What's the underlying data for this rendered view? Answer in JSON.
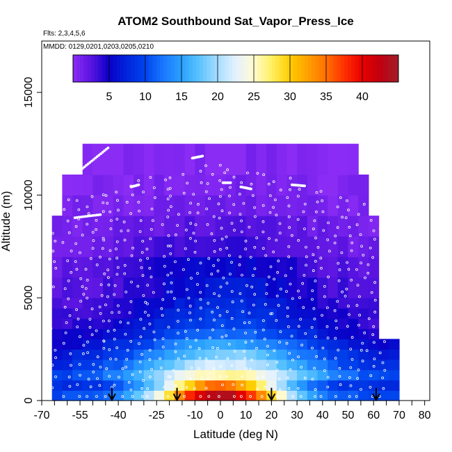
{
  "chart_data": {
    "type": "heatmap",
    "title": "ATOM2 Southbound Sat_Vapor_Press_Ice",
    "flights_label": "Flts: 2,3,4,5,6",
    "dates_label": "MMDD: 0129,0201,0203,0205,0210",
    "xlabel": "Latitude (deg N)",
    "ylabel": "Altitude (m)",
    "xlim": [
      -70,
      82
    ],
    "ylim": [
      0,
      17500
    ],
    "x_ticks": [
      -70,
      -55,
      -40,
      -25,
      -10,
      0,
      10,
      20,
      30,
      40,
      50,
      60,
      70,
      80
    ],
    "x_tick_labels": [
      "-70",
      "-55",
      "-40",
      "-25",
      "-10",
      "0",
      "10",
      "20",
      "30",
      "40",
      "50",
      "60",
      "70",
      "80"
    ],
    "x_minor_ticks": [
      -65,
      -60,
      -50,
      -45,
      -35,
      -30,
      -20,
      -15,
      -5,
      5,
      15,
      25,
      35,
      45,
      55,
      65,
      75
    ],
    "y_ticks": [
      0,
      5000,
      10000,
      15000
    ],
    "y_tick_labels": [
      "0",
      "5000",
      "10000",
      "15000"
    ],
    "colorbar": {
      "range": [
        0,
        45
      ],
      "ticks": [
        5,
        10,
        15,
        20,
        25,
        30,
        35,
        40
      ],
      "tick_labels": [
        "5",
        "10",
        "15",
        "20",
        "25",
        "30",
        "35",
        "40"
      ],
      "stops": [
        {
          "v": 0,
          "c": "#8b2cf5"
        },
        {
          "v": 2.5,
          "c": "#5a14e0"
        },
        {
          "v": 5,
          "c": "#0a00c8"
        },
        {
          "v": 7.5,
          "c": "#0026dc"
        },
        {
          "v": 10,
          "c": "#0044ee"
        },
        {
          "v": 12.5,
          "c": "#1a78ff"
        },
        {
          "v": 15,
          "c": "#2aa0ff"
        },
        {
          "v": 17.5,
          "c": "#5cc4ff"
        },
        {
          "v": 20,
          "c": "#a8dcff"
        },
        {
          "v": 22.5,
          "c": "#e4f2ff"
        },
        {
          "v": 25,
          "c": "#fffad0"
        },
        {
          "v": 27.5,
          "c": "#fff060"
        },
        {
          "v": 30,
          "c": "#ffcc00"
        },
        {
          "v": 32.5,
          "c": "#ffa000"
        },
        {
          "v": 35,
          "c": "#ff7000"
        },
        {
          "v": 37.5,
          "c": "#ff3000"
        },
        {
          "v": 40,
          "c": "#e80000"
        },
        {
          "v": 42.5,
          "c": "#c00010"
        },
        {
          "v": 45,
          "c": "#a01e28"
        }
      ]
    },
    "field": {
      "alt_layers": [
        {
          "alt": [
            0,
            500
          ],
          "t": 40
        },
        {
          "alt": [
            500,
            1000
          ],
          "t": 32
        },
        {
          "alt": [
            1000,
            1500
          ],
          "t": 24
        },
        {
          "alt": [
            1500,
            2000
          ],
          "t": 20
        },
        {
          "alt": [
            2000,
            2500
          ],
          "t": 17
        },
        {
          "alt": [
            2500,
            3000
          ],
          "t": 14
        },
        {
          "alt": [
            3000,
            3500
          ],
          "t": 11
        },
        {
          "alt": [
            3500,
            4000
          ],
          "t": 9
        },
        {
          "alt": [
            4000,
            4500
          ],
          "t": 8
        },
        {
          "alt": [
            4500,
            5000
          ],
          "t": 7
        },
        {
          "alt": [
            5000,
            6000
          ],
          "t": 6
        },
        {
          "alt": [
            6000,
            7000
          ],
          "t": 5
        },
        {
          "alt": [
            7000,
            8000
          ],
          "t": 3.5
        },
        {
          "alt": [
            8000,
            9000
          ],
          "t": 2.5
        },
        {
          "alt": [
            9000,
            10000
          ],
          "t": 1.5
        },
        {
          "alt": [
            10000,
            11000
          ],
          "t": 1
        },
        {
          "alt": [
            11000,
            12500
          ],
          "t": 0.5
        }
      ],
      "lat_envelope_low_alt": [
        -67,
        68
      ],
      "lat_envelope_mid_alt": [
        -67,
        62
      ],
      "lat_envelope_high_alt": [
        -62,
        58
      ]
    },
    "arrows_lat": [
      -42.5,
      -17,
      20,
      61
    ]
  }
}
